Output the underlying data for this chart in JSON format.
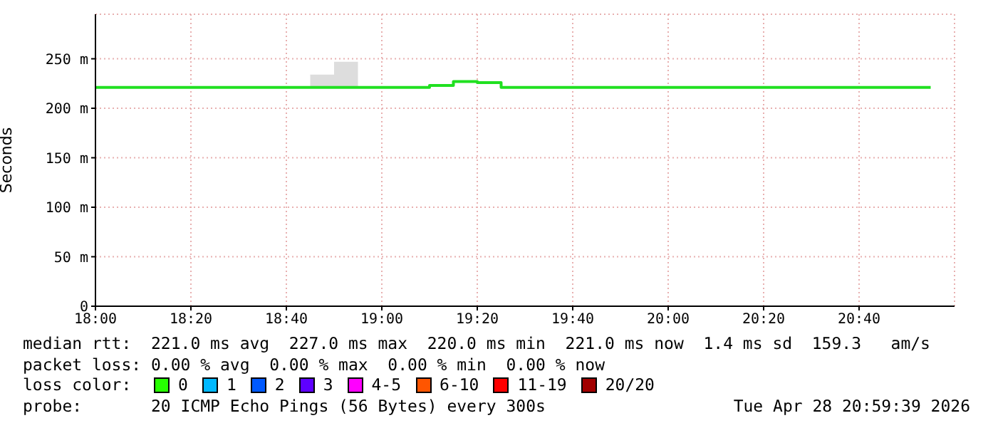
{
  "chart_data": {
    "type": "step",
    "ylabel": "Seconds",
    "x": [
      "2026-04-28T18:00",
      "2026-04-28T18:05",
      "2026-04-28T18:10",
      "2026-04-28T18:15",
      "2026-04-28T18:20",
      "2026-04-28T18:25",
      "2026-04-28T18:30",
      "2026-04-28T18:35",
      "2026-04-28T18:40",
      "2026-04-28T18:45",
      "2026-04-28T18:50",
      "2026-04-28T18:55",
      "2026-04-28T19:00",
      "2026-04-28T19:05",
      "2026-04-28T19:10",
      "2026-04-28T19:15",
      "2026-04-28T19:20",
      "2026-04-28T19:25",
      "2026-04-28T19:30",
      "2026-04-28T19:35",
      "2026-04-28T19:40",
      "2026-04-28T19:45",
      "2026-04-28T19:50",
      "2026-04-28T19:55",
      "2026-04-28T20:00",
      "2026-04-28T20:05",
      "2026-04-28T20:10",
      "2026-04-28T20:15",
      "2026-04-28T20:20",
      "2026-04-28T20:25",
      "2026-04-28T20:30",
      "2026-04-28T20:35",
      "2026-04-28T20:40",
      "2026-04-28T20:45",
      "2026-04-28T20:50",
      "2026-04-28T20:55"
    ],
    "series": [
      {
        "color": "#20e020",
        "values": [
          221,
          221,
          221,
          221,
          221,
          221,
          221,
          221,
          221,
          221,
          221,
          221,
          221,
          221,
          223,
          227,
          226,
          221,
          221,
          221,
          221,
          221,
          221,
          221,
          221,
          221,
          221,
          221,
          221,
          221,
          221,
          221,
          221,
          221,
          221,
          221
        ],
        "lower": [
          221,
          221,
          221,
          221,
          221,
          221,
          221,
          221,
          221,
          221,
          221,
          221,
          221,
          221,
          223,
          227,
          226,
          221,
          221,
          221,
          221,
          221,
          221,
          221,
          221,
          221,
          221,
          221,
          221,
          221,
          221,
          221,
          221,
          221,
          221,
          221
        ],
        "upper": [
          221,
          221,
          221,
          221,
          221,
          221,
          221,
          221,
          221,
          234,
          247,
          221,
          221,
          221,
          223,
          227,
          226,
          221,
          221,
          221,
          221,
          221,
          221,
          221,
          221,
          221,
          221,
          221,
          221,
          221,
          221,
          221,
          221,
          221,
          221,
          221
        ]
      }
    ],
    "xlim": [
      "2026-04-28T18:00",
      "2026-04-28T21:00"
    ],
    "xticks": [
      {
        "value": "2026-04-28T18:00",
        "label": "18:00"
      },
      {
        "value": "2026-04-28T18:20",
        "label": "18:20"
      },
      {
        "value": "2026-04-28T18:40",
        "label": "18:40"
      },
      {
        "value": "2026-04-28T19:00",
        "label": "19:00"
      },
      {
        "value": "2026-04-28T19:20",
        "label": "19:20"
      },
      {
        "value": "2026-04-28T19:40",
        "label": "19:40"
      },
      {
        "value": "2026-04-28T20:00",
        "label": "20:00"
      },
      {
        "value": "2026-04-28T20:20",
        "label": "20:20"
      },
      {
        "value": "2026-04-28T20:40",
        "label": "20:40"
      }
    ],
    "ylim": [
      0,
      295
    ],
    "yticks": [
      0,
      {
        "value": 50,
        "label": "50 m"
      },
      {
        "value": 100,
        "label": "100 m"
      },
      {
        "value": 150,
        "label": "150 m"
      },
      {
        "value": 200,
        "label": "200 m"
      },
      {
        "value": 250,
        "label": "250 m"
      }
    ],
    "grid": true,
    "annotations": [
      "median rtt:  221.0 ms avg  227.0 ms max  220.0 ms min  221.0 ms now  1.4 ms sd  159.3   am/s",
      "packet loss: 0.00 % avg  0.00 % max  0.00 % min  0.00 % now",
      "loss color:",
      "0",
      "1",
      "2",
      "3",
      "4-5",
      "6-10",
      "11-19",
      "20/20",
      "probe:       20 ICMP Echo Pings (56 Bytes) every 300s",
      "Tue Apr 28 20:59:39 2026"
    ]
  }
}
